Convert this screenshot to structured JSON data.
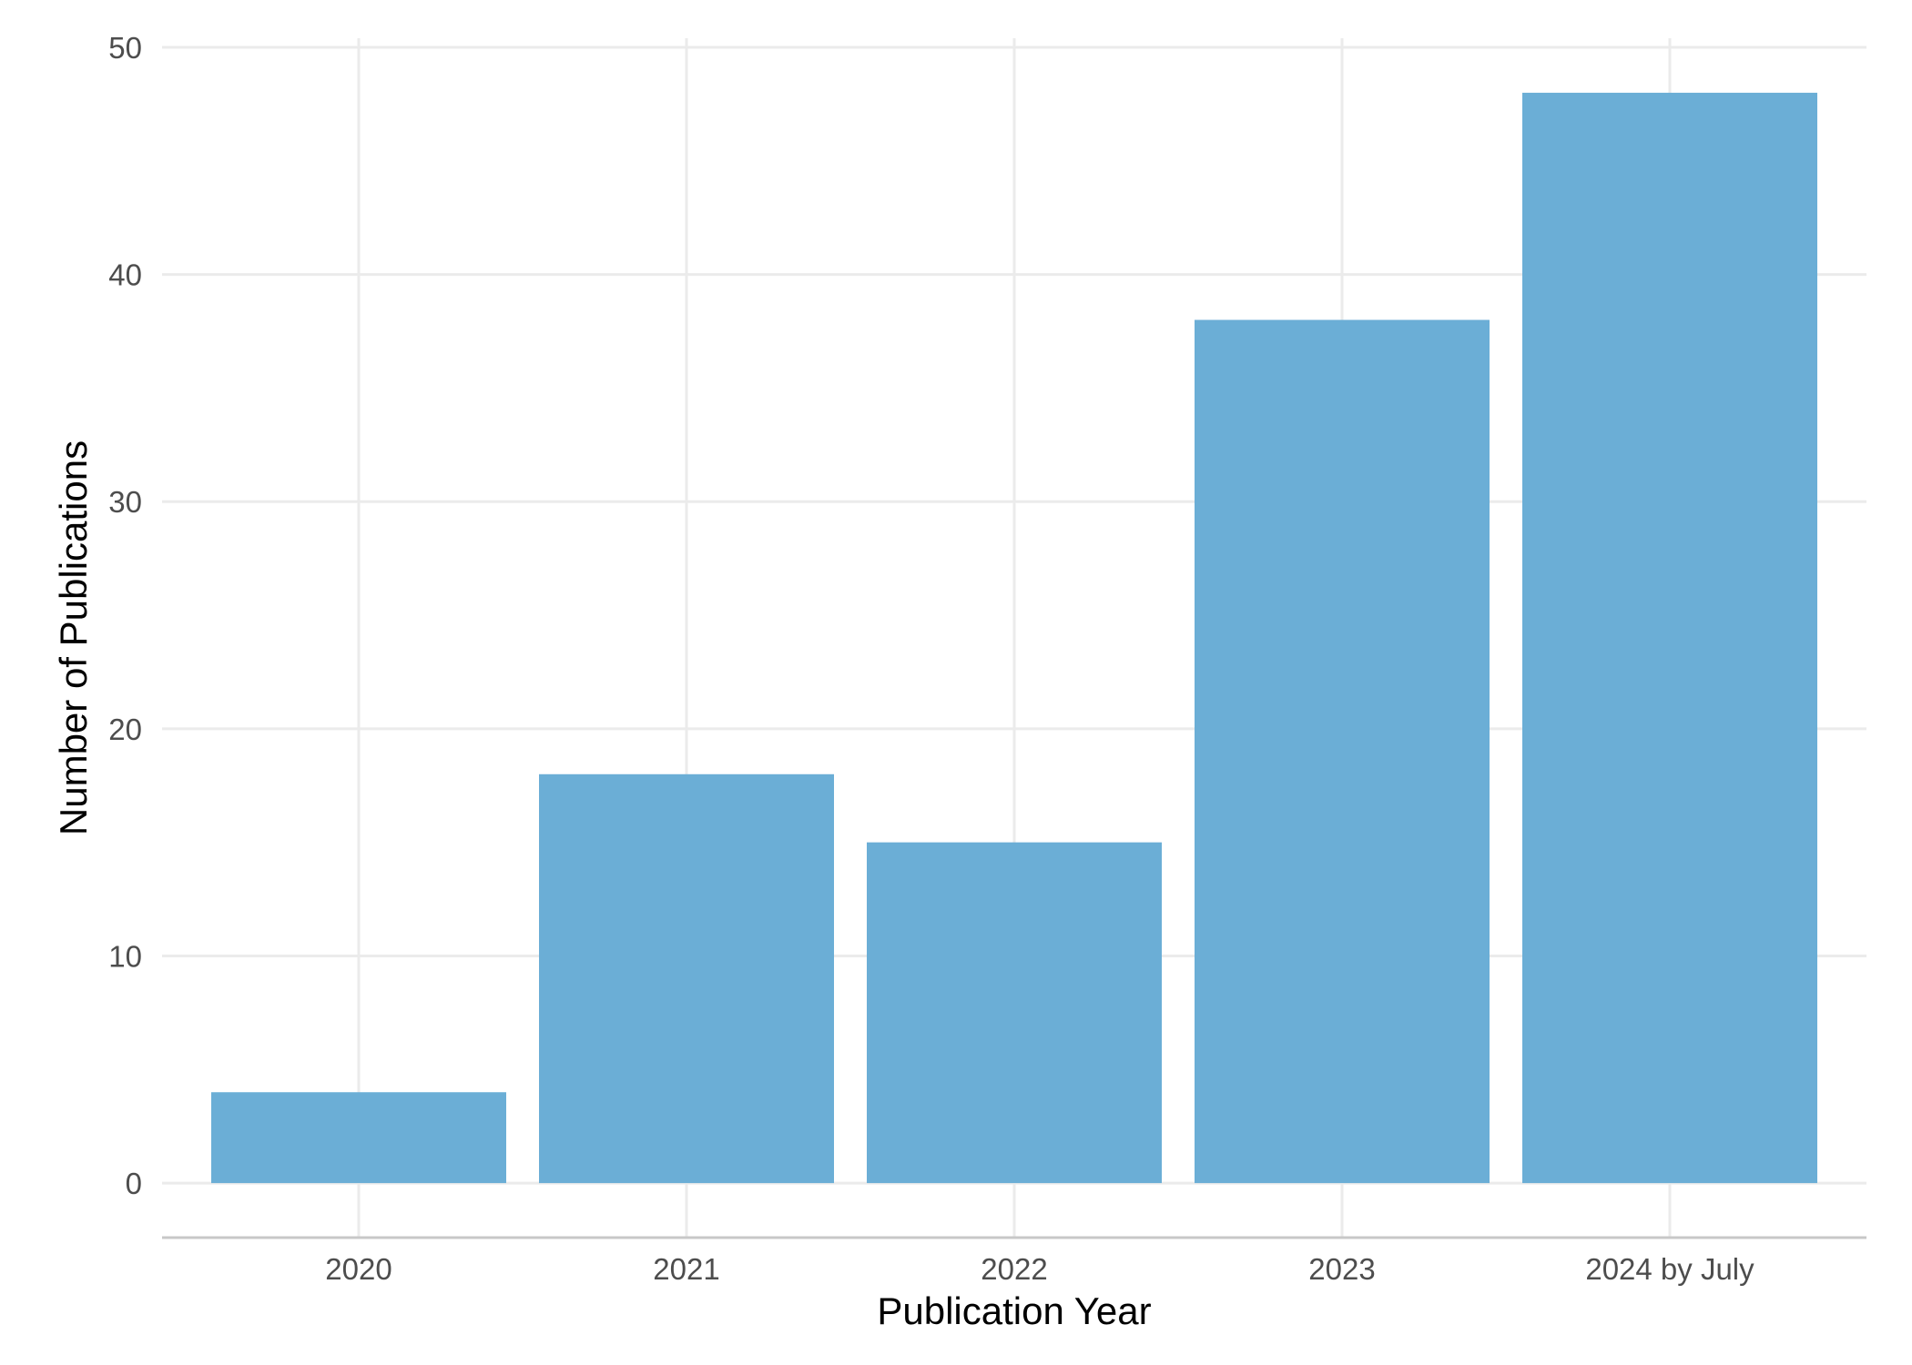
{
  "chart_data": {
    "type": "bar",
    "categories": [
      "2020",
      "2021",
      "2022",
      "2023",
      "2024 by July"
    ],
    "values": [
      4,
      18,
      15,
      38,
      48
    ],
    "title": "",
    "xlabel": "Publication Year",
    "ylabel": "Number of Publications",
    "ylim": [
      -2.4,
      50.4
    ],
    "yticks": [
      0,
      10,
      20,
      30,
      40,
      50
    ],
    "grid": true,
    "bar_color": "#6baed6",
    "legend": "none"
  }
}
